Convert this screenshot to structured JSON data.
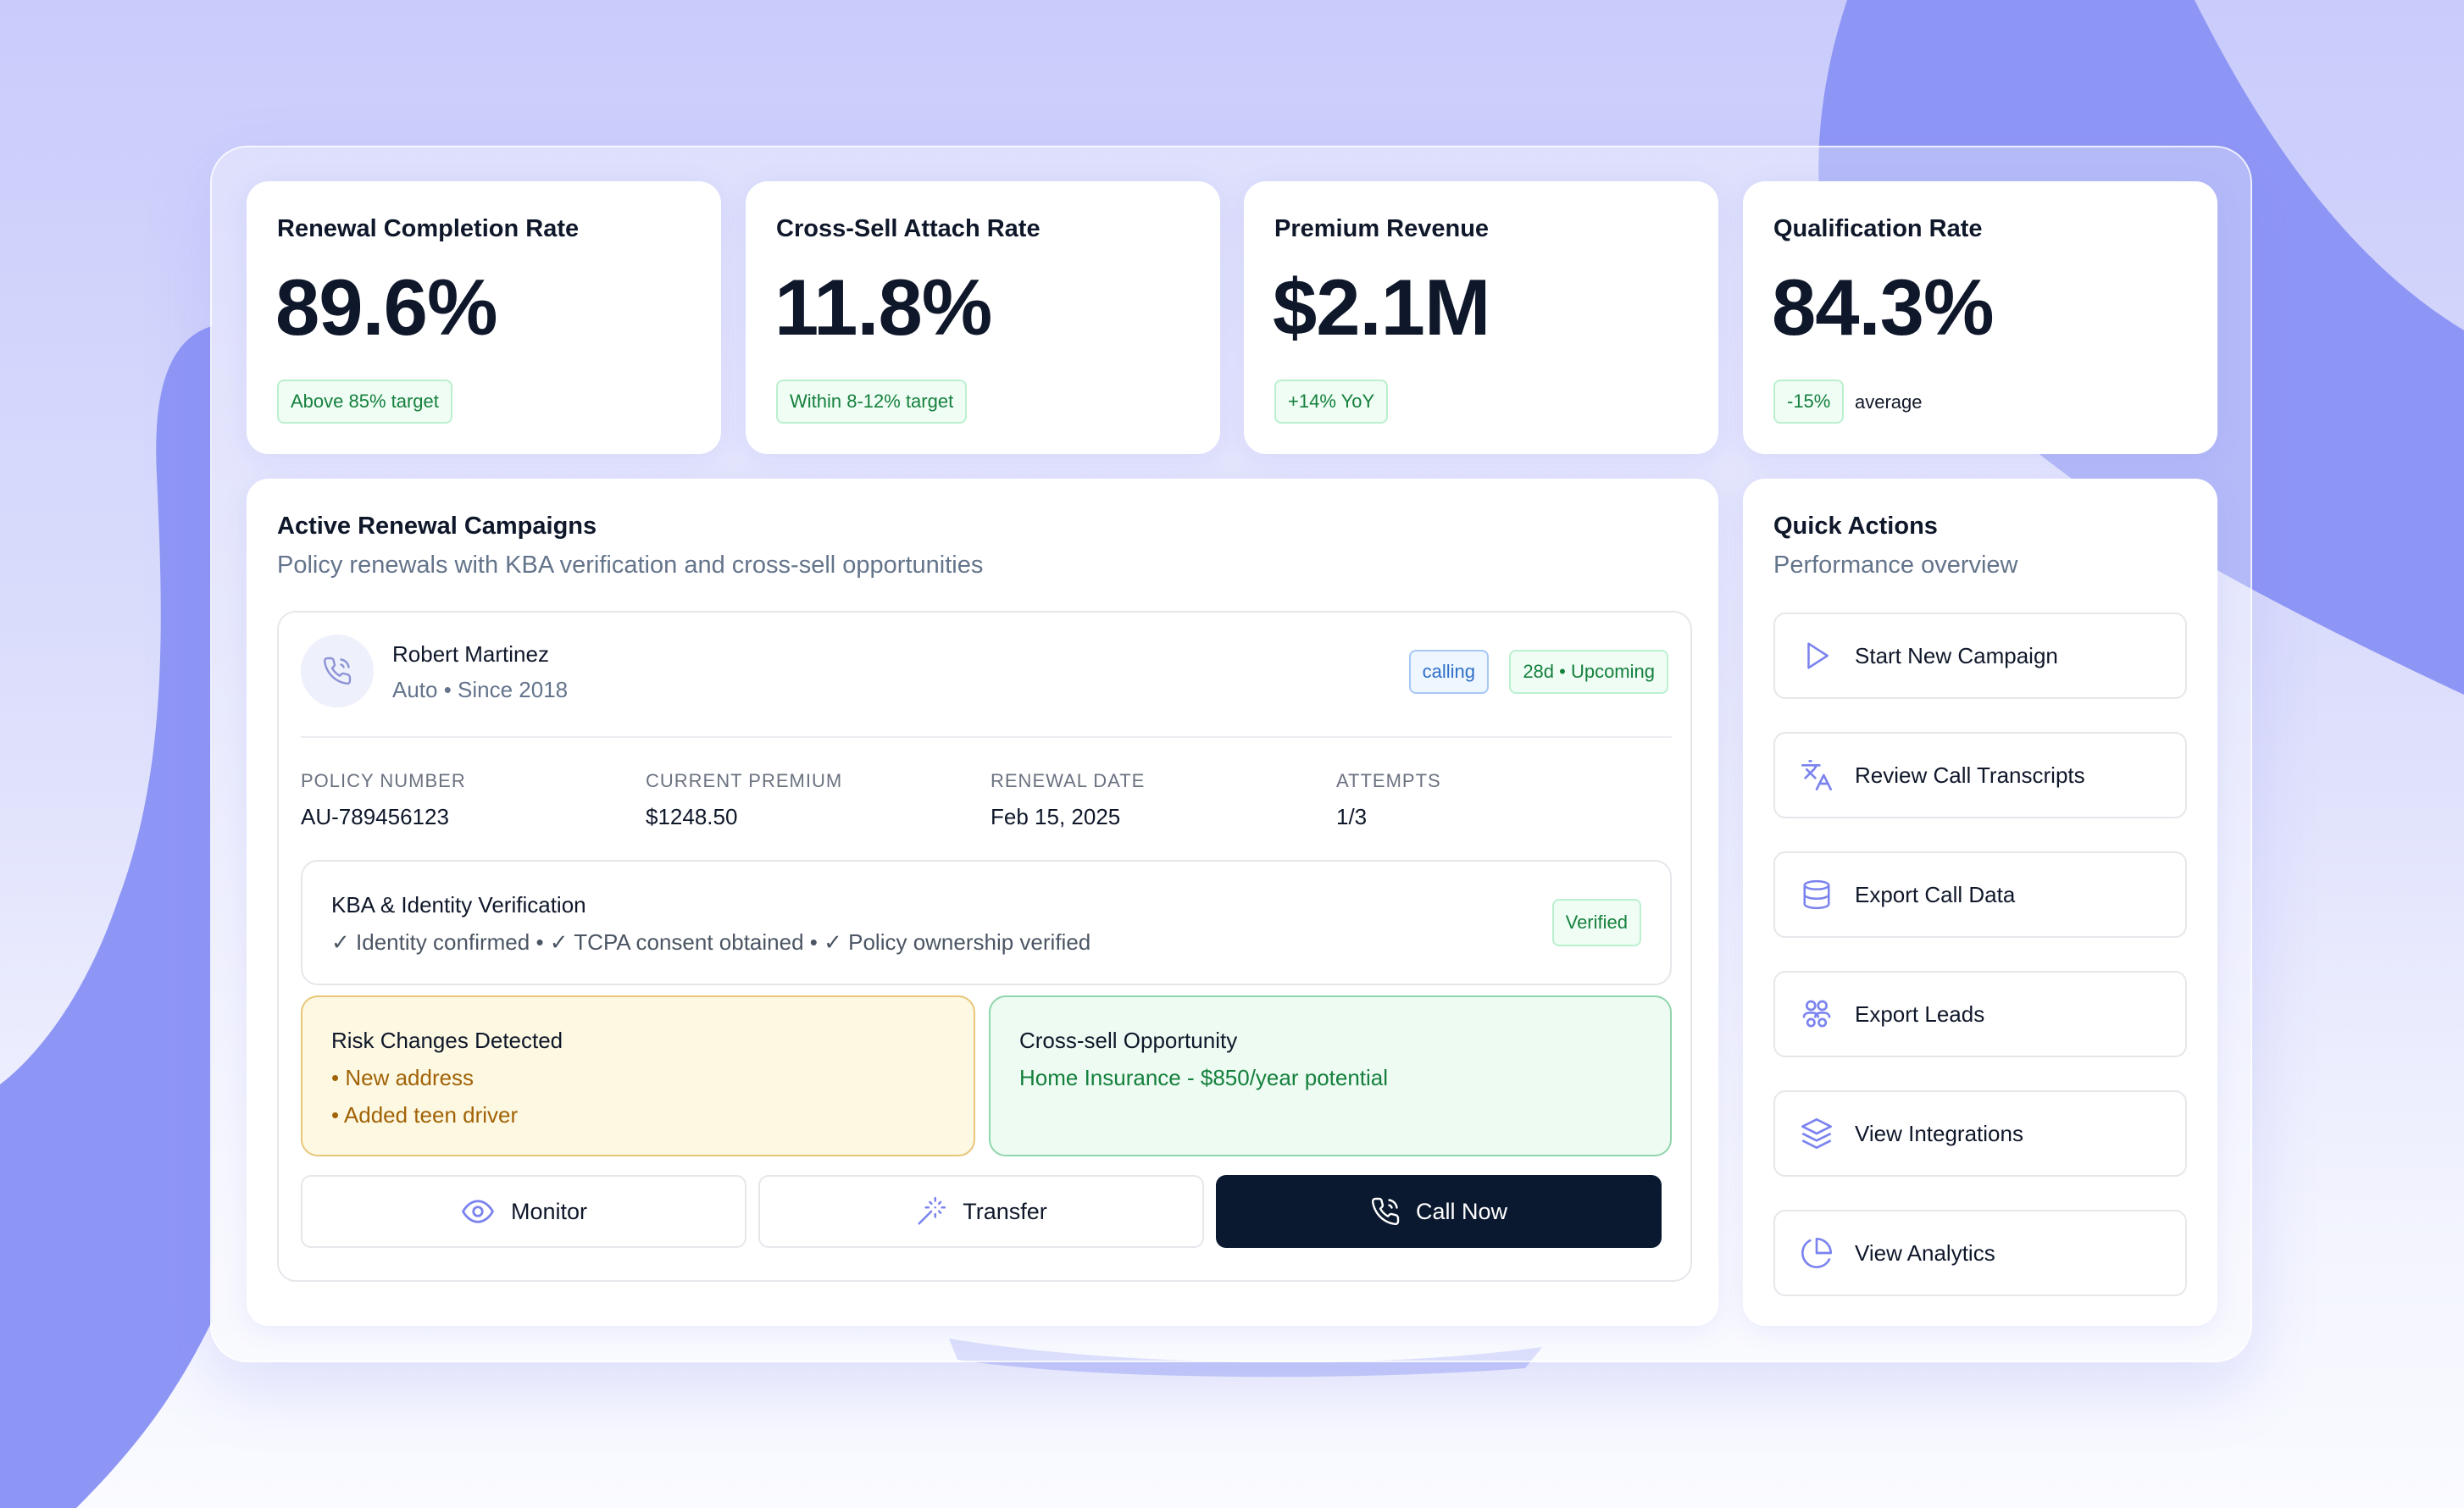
{
  "colors": {
    "accent": "#7b83ee",
    "dark_button": "#0b1930",
    "success": "#15803d",
    "warning": "#a16207",
    "info": "#2f6fc7"
  },
  "stats": [
    {
      "title": "Renewal Completion Rate",
      "value": "89.6%",
      "badge": "Above 85% target",
      "note": ""
    },
    {
      "title": "Cross-Sell Attach Rate",
      "value": "11.8%",
      "badge": "Within 8-12% target",
      "note": ""
    },
    {
      "title": "Premium Revenue",
      "value": "$2.1M",
      "badge": "+14% YoY",
      "note": ""
    },
    {
      "title": "Qualification Rate",
      "value": "84.3%",
      "badge": "-15%",
      "note": "average"
    }
  ],
  "campaigns": {
    "title": "Active Renewal Campaigns",
    "subtitle": "Policy renewals with KBA verification and cross-sell opportunities",
    "customer": {
      "avatar_icon": "phone-icon",
      "name": "Robert Martinez",
      "sub": "Auto • Since 2018",
      "status": "calling",
      "renewal_badge": "28d • Upcoming"
    },
    "fields": [
      {
        "label": "POLICY NUMBER",
        "value": "AU-789456123"
      },
      {
        "label": "CURRENT PREMIUM",
        "value": "$1248.50"
      },
      {
        "label": "RENEWAL DATE",
        "value": "Feb 15, 2025"
      },
      {
        "label": "ATTEMPTS",
        "value": "1/3"
      }
    ],
    "kba": {
      "title": "KBA & Identity Verification",
      "checks": "✓ Identity confirmed • ✓ TCPA consent obtained • ✓ Policy ownership verified",
      "badge": "Verified"
    },
    "risk": {
      "title": "Risk Changes Detected",
      "items": [
        "• New address",
        "• Added teen driver"
      ]
    },
    "cross_sell": {
      "title": "Cross-sell Opportunity",
      "detail": "Home Insurance - $850/year potential"
    },
    "actions": {
      "monitor": "Monitor",
      "transfer": "Transfer",
      "call_now": "Call Now"
    }
  },
  "quick_actions": {
    "title": "Quick Actions",
    "subtitle": "Performance overview",
    "items": [
      {
        "label": "Start New Campaign",
        "icon": "play-icon"
      },
      {
        "label": "Review Call Transcripts",
        "icon": "translate-icon"
      },
      {
        "label": "Export Call Data",
        "icon": "database-icon"
      },
      {
        "label": "Export Leads",
        "icon": "users-icon"
      },
      {
        "label": "View Integrations",
        "icon": "layers-icon"
      },
      {
        "label": "View Analytics",
        "icon": "pie-chart-icon"
      }
    ]
  }
}
